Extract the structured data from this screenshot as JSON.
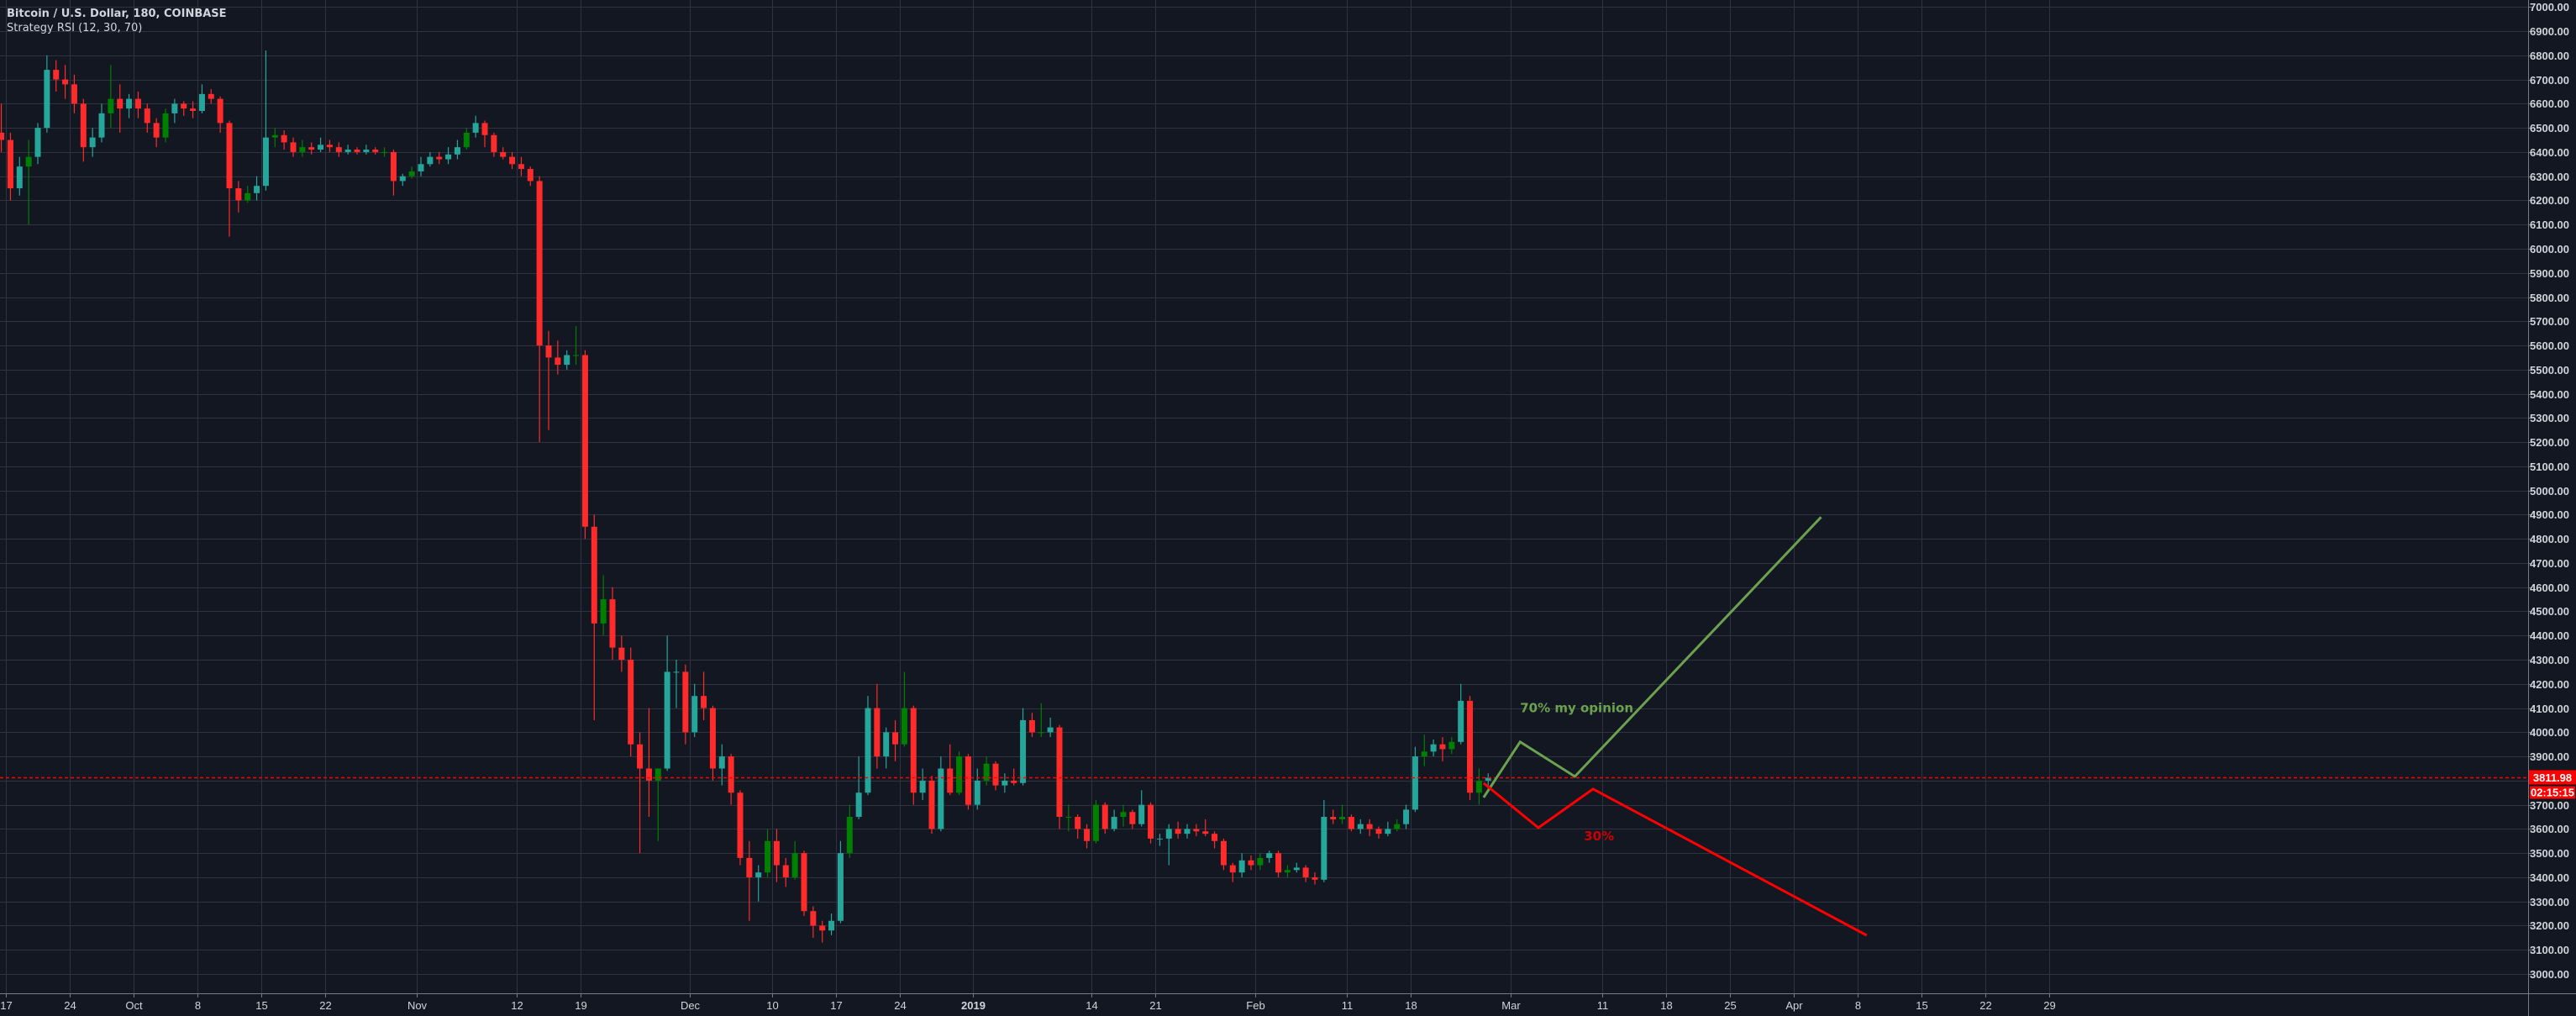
{
  "header": {
    "symbol_title": "Bitcoin / U.S. Dollar, 180, COINBASE",
    "indicator": "Strategy RSI (12, 30, 70)"
  },
  "price_axis": {
    "last_price": "3811.98",
    "countdown": "02:15:15"
  },
  "colors": {
    "background": "#131722",
    "grid": "#2f3340",
    "up": "#26a69a",
    "up_strong": "#008000",
    "down": "#ff2a2a",
    "last_price": "#ff0000",
    "scenario_up": "#6ba14f",
    "scenario_down": "#ff0000",
    "axis_text": "#d1d4dc"
  },
  "chart_data": {
    "type": "candlestick",
    "title": "Bitcoin / U.S. Dollar, 180, COINBASE",
    "ylim": [
      2900,
      7020
    ],
    "y_ticks": [
      3000,
      3100,
      3200,
      3300,
      3400,
      3500,
      3600,
      3700,
      3800,
      3900,
      4000,
      4100,
      4200,
      4300,
      4400,
      4500,
      4600,
      4700,
      4800,
      4900,
      5000,
      5100,
      5200,
      5300,
      5400,
      5500,
      5600,
      5700,
      5800,
      5900,
      6000,
      6100,
      6200,
      6300,
      6400,
      6500,
      6600,
      6700,
      6800,
      6900,
      7000
    ],
    "x_ticks": [
      {
        "date": "2018-09-17",
        "label": "17"
      },
      {
        "date": "2018-09-24",
        "label": "24"
      },
      {
        "date": "2018-10-01",
        "label": "Oct"
      },
      {
        "date": "2018-10-08",
        "label": "8"
      },
      {
        "date": "2018-10-15",
        "label": "15"
      },
      {
        "date": "2018-10-22",
        "label": "22"
      },
      {
        "date": "2018-11-01",
        "label": "Nov"
      },
      {
        "date": "2018-11-12",
        "label": "12"
      },
      {
        "date": "2018-11-19",
        "label": "19"
      },
      {
        "date": "2018-12-01",
        "label": "Dec"
      },
      {
        "date": "2018-12-10",
        "label": "10"
      },
      {
        "date": "2018-12-17",
        "label": "17"
      },
      {
        "date": "2018-12-24",
        "label": "24"
      },
      {
        "date": "2019-01-01",
        "label": "2019"
      },
      {
        "date": "2019-01-14",
        "label": "14"
      },
      {
        "date": "2019-01-21",
        "label": "21"
      },
      {
        "date": "2019-02-01",
        "label": "Feb"
      },
      {
        "date": "2019-02-11",
        "label": "11"
      },
      {
        "date": "2019-02-18",
        "label": "18"
      },
      {
        "date": "2019-03-01",
        "label": "Mar"
      },
      {
        "date": "2019-03-11",
        "label": "11"
      },
      {
        "date": "2019-03-18",
        "label": "18"
      },
      {
        "date": "2019-03-25",
        "label": "25"
      },
      {
        "date": "2019-04-01",
        "label": "Apr"
      },
      {
        "date": "2019-04-08",
        "label": "8"
      },
      {
        "date": "2019-04-15",
        "label": "15"
      },
      {
        "date": "2019-04-22",
        "label": "22"
      },
      {
        "date": "2019-04-29",
        "label": "29"
      }
    ],
    "grid": true,
    "last_price": 3811.98,
    "start_date": "2018-09-16",
    "ohlc": [
      [
        6480,
        6600,
        6400,
        6450
      ],
      [
        6450,
        6480,
        6200,
        6250
      ],
      [
        6250,
        6380,
        6220,
        6340
      ],
      [
        6340,
        6450,
        6100,
        6380
      ],
      [
        6380,
        6520,
        6350,
        6500
      ],
      [
        6500,
        6800,
        6480,
        6740
      ],
      [
        6740,
        6780,
        6650,
        6700
      ],
      [
        6700,
        6760,
        6620,
        6680
      ],
      [
        6680,
        6720,
        6560,
        6600
      ],
      [
        6600,
        6620,
        6360,
        6420
      ],
      [
        6420,
        6500,
        6380,
        6460
      ],
      [
        6460,
        6600,
        6440,
        6560
      ],
      [
        6560,
        6760,
        6500,
        6620
      ],
      [
        6620,
        6680,
        6480,
        6580
      ],
      [
        6580,
        6640,
        6540,
        6620
      ],
      [
        6620,
        6650,
        6540,
        6580
      ],
      [
        6580,
        6600,
        6480,
        6520
      ],
      [
        6520,
        6540,
        6420,
        6460
      ],
      [
        6460,
        6580,
        6440,
        6560
      ],
      [
        6560,
        6620,
        6520,
        6600
      ],
      [
        6600,
        6610,
        6550,
        6580
      ],
      [
        6580,
        6610,
        6540,
        6570
      ],
      [
        6570,
        6680,
        6560,
        6640
      ],
      [
        6640,
        6660,
        6600,
        6620
      ],
      [
        6620,
        6630,
        6480,
        6520
      ],
      [
        6520,
        6530,
        6050,
        6250
      ],
      [
        6250,
        6280,
        6150,
        6200
      ],
      [
        6200,
        6260,
        6190,
        6230
      ],
      [
        6230,
        6300,
        6200,
        6260
      ],
      [
        6260,
        6820,
        6240,
        6460
      ],
      [
        6460,
        6500,
        6420,
        6470
      ],
      [
        6470,
        6490,
        6410,
        6440
      ],
      [
        6440,
        6460,
        6380,
        6400
      ],
      [
        6400,
        6450,
        6380,
        6420
      ],
      [
        6420,
        6440,
        6390,
        6410
      ],
      [
        6410,
        6460,
        6400,
        6430
      ],
      [
        6430,
        6450,
        6400,
        6420
      ],
      [
        6420,
        6440,
        6380,
        6400
      ],
      [
        6400,
        6430,
        6390,
        6410
      ],
      [
        6410,
        6420,
        6390,
        6400
      ],
      [
        6400,
        6430,
        6390,
        6410
      ],
      [
        6410,
        6420,
        6390,
        6400
      ],
      [
        6400,
        6420,
        6380,
        6400
      ],
      [
        6400,
        6410,
        6220,
        6280
      ],
      [
        6280,
        6310,
        6260,
        6300
      ],
      [
        6300,
        6340,
        6290,
        6320
      ],
      [
        6320,
        6380,
        6300,
        6350
      ],
      [
        6350,
        6400,
        6340,
        6380
      ],
      [
        6380,
        6400,
        6350,
        6370
      ],
      [
        6370,
        6420,
        6350,
        6390
      ],
      [
        6390,
        6450,
        6370,
        6420
      ],
      [
        6420,
        6500,
        6410,
        6480
      ],
      [
        6480,
        6550,
        6460,
        6520
      ],
      [
        6520,
        6530,
        6420,
        6470
      ],
      [
        6470,
        6480,
        6380,
        6400
      ],
      [
        6400,
        6420,
        6370,
        6380
      ],
      [
        6380,
        6400,
        6330,
        6350
      ],
      [
        6350,
        6380,
        6300,
        6330
      ],
      [
        6330,
        6340,
        6260,
        6280
      ],
      [
        6280,
        6300,
        5200,
        5600
      ],
      [
        5600,
        5660,
        5250,
        5550
      ],
      [
        5550,
        5620,
        5480,
        5520
      ],
      [
        5520,
        5580,
        5500,
        5560
      ],
      [
        5560,
        5680,
        5520,
        5560
      ],
      [
        5560,
        5580,
        4800,
        4850
      ],
      [
        4850,
        4900,
        4050,
        4450
      ],
      [
        4450,
        4650,
        4400,
        4550
      ],
      [
        4550,
        4600,
        4300,
        4350
      ],
      [
        4350,
        4400,
        4250,
        4300
      ],
      [
        4300,
        4350,
        3900,
        3950
      ],
      [
        3950,
        4000,
        3500,
        3850
      ],
      [
        3850,
        4100,
        3650,
        3800
      ],
      [
        3800,
        3850,
        3550,
        3850
      ],
      [
        3850,
        4400,
        3840,
        4250
      ],
      [
        4250,
        4300,
        4100,
        4250
      ],
      [
        4250,
        4280,
        3950,
        4000
      ],
      [
        4000,
        4200,
        3980,
        4150
      ],
      [
        4150,
        4250,
        4050,
        4100
      ],
      [
        4100,
        4110,
        3800,
        3850
      ],
      [
        3850,
        3950,
        3780,
        3900
      ],
      [
        3900,
        3910,
        3700,
        3750
      ],
      [
        3750,
        3760,
        3450,
        3480
      ],
      [
        3480,
        3550,
        3220,
        3400
      ],
      [
        3400,
        3450,
        3300,
        3420
      ],
      [
        3420,
        3600,
        3400,
        3550
      ],
      [
        3550,
        3600,
        3380,
        3450
      ],
      [
        3450,
        3480,
        3360,
        3400
      ],
      [
        3400,
        3550,
        3390,
        3500
      ],
      [
        3500,
        3510,
        3240,
        3260
      ],
      [
        3260,
        3280,
        3150,
        3200
      ],
      [
        3200,
        3220,
        3130,
        3180
      ],
      [
        3180,
        3250,
        3160,
        3220
      ],
      [
        3220,
        3550,
        3210,
        3500
      ],
      [
        3500,
        3700,
        3480,
        3650
      ],
      [
        3650,
        3900,
        3640,
        3750
      ],
      [
        3750,
        4150,
        3740,
        4100
      ],
      [
        4100,
        4200,
        3850,
        3900
      ],
      [
        3900,
        4020,
        3850,
        4000
      ],
      [
        4000,
        4050,
        3880,
        3950
      ],
      [
        3950,
        4250,
        3940,
        4100
      ],
      [
        4100,
        4110,
        3700,
        3750
      ],
      [
        3750,
        3850,
        3720,
        3800
      ],
      [
        3800,
        3820,
        3580,
        3600
      ],
      [
        3600,
        3900,
        3590,
        3850
      ],
      [
        3850,
        3950,
        3740,
        3750
      ],
      [
        3750,
        3920,
        3740,
        3900
      ],
      [
        3900,
        3910,
        3680,
        3700
      ],
      [
        3700,
        3850,
        3680,
        3800
      ],
      [
        3800,
        3900,
        3780,
        3870
      ],
      [
        3870,
        3880,
        3760,
        3780
      ],
      [
        3780,
        3830,
        3750,
        3800
      ],
      [
        3800,
        3850,
        3780,
        3790
      ],
      [
        3790,
        4100,
        3780,
        4050
      ],
      [
        4050,
        4080,
        3980,
        4000
      ],
      [
        4000,
        4120,
        3980,
        4000
      ],
      [
        4000,
        4060,
        3980,
        4020
      ],
      [
        4020,
        4030,
        3600,
        3650
      ],
      [
        3650,
        3700,
        3590,
        3650
      ],
      [
        3650,
        3660,
        3560,
        3600
      ],
      [
        3600,
        3620,
        3520,
        3550
      ],
      [
        3550,
        3720,
        3540,
        3700
      ],
      [
        3700,
        3710,
        3580,
        3600
      ],
      [
        3600,
        3680,
        3590,
        3650
      ],
      [
        3650,
        3700,
        3610,
        3670
      ],
      [
        3670,
        3680,
        3600,
        3620
      ],
      [
        3620,
        3760,
        3610,
        3700
      ],
      [
        3700,
        3710,
        3540,
        3560
      ],
      [
        3560,
        3580,
        3530,
        3560
      ],
      [
        3560,
        3620,
        3450,
        3600
      ],
      [
        3600,
        3630,
        3560,
        3580
      ],
      [
        3580,
        3620,
        3560,
        3600
      ],
      [
        3600,
        3620,
        3570,
        3590
      ],
      [
        3590,
        3640,
        3570,
        3580
      ],
      [
        3580,
        3590,
        3520,
        3550
      ],
      [
        3550,
        3560,
        3430,
        3450
      ],
      [
        3450,
        3460,
        3380,
        3420
      ],
      [
        3420,
        3500,
        3400,
        3470
      ],
      [
        3470,
        3490,
        3430,
        3450
      ],
      [
        3450,
        3500,
        3430,
        3480
      ],
      [
        3480,
        3510,
        3460,
        3500
      ],
      [
        3500,
        3510,
        3400,
        3420
      ],
      [
        3420,
        3450,
        3400,
        3430
      ],
      [
        3430,
        3460,
        3420,
        3440
      ],
      [
        3440,
        3450,
        3380,
        3400
      ],
      [
        3400,
        3420,
        3370,
        3390
      ],
      [
        3390,
        3720,
        3380,
        3650
      ],
      [
        3650,
        3680,
        3620,
        3640
      ],
      [
        3640,
        3700,
        3620,
        3650
      ],
      [
        3650,
        3660,
        3590,
        3600
      ],
      [
        3600,
        3640,
        3580,
        3620
      ],
      [
        3620,
        3640,
        3570,
        3600
      ],
      [
        3600,
        3610,
        3560,
        3580
      ],
      [
        3580,
        3630,
        3570,
        3600
      ],
      [
        3600,
        3640,
        3590,
        3620
      ],
      [
        3620,
        3700,
        3600,
        3680
      ],
      [
        3680,
        3940,
        3670,
        3900
      ],
      [
        3900,
        3990,
        3860,
        3920
      ],
      [
        3920,
        3970,
        3900,
        3950
      ],
      [
        3950,
        3980,
        3880,
        3930
      ],
      [
        3930,
        3980,
        3910,
        3960
      ],
      [
        3960,
        4200,
        3950,
        4130
      ],
      [
        4130,
        4150,
        3720,
        3750
      ],
      [
        3750,
        3850,
        3700,
        3800
      ],
      [
        3800,
        3830,
        3760,
        3812
      ]
    ],
    "drawings": [
      {
        "name": "scenario-up-path",
        "color": "#6ba14f",
        "points": [
          [
            "2019-02-26",
            3730
          ],
          [
            "2019-03-02",
            3960
          ],
          [
            "2019-03-08",
            3817
          ],
          [
            "2019-04-04",
            4890
          ]
        ]
      },
      {
        "name": "scenario-down-path",
        "color": "#ff0000",
        "points": [
          [
            "2019-02-26",
            3790
          ],
          [
            "2019-03-04",
            3605
          ],
          [
            "2019-03-10",
            3765
          ],
          [
            "2019-04-09",
            3160
          ]
        ]
      }
    ],
    "annotations": [
      {
        "text": "70% my opinion",
        "date": "2019-03-02",
        "price": 4100,
        "color": "#6ba14f"
      },
      {
        "text": "30%",
        "date": "2019-03-09",
        "price": 3570,
        "color": "#cc0000"
      }
    ]
  }
}
